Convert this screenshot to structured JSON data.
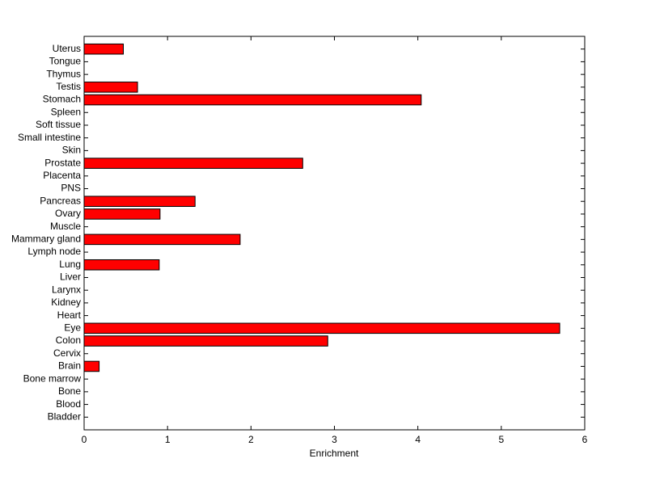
{
  "chart_data": {
    "type": "barh",
    "x_label": "Enrichment",
    "categories": [
      "Bladder",
      "Blood",
      "Bone",
      "Bone marrow",
      "Brain",
      "Cervix",
      "Colon",
      "Eye",
      "Heart",
      "Kidney",
      "Larynx",
      "Liver",
      "Lung",
      "Lymph node",
      "Mammary gland",
      "Muscle",
      "Ovary",
      "Pancreas",
      "PNS",
      "Placenta",
      "Prostate",
      "Skin",
      "Small intestine",
      "Soft tissue",
      "Spleen",
      "Stomach",
      "Testis",
      "Thymus",
      "Tongue",
      "Uterus"
    ],
    "values": [
      0,
      0,
      0,
      0,
      0.18,
      0,
      2.92,
      5.7,
      0,
      0,
      0,
      0,
      0.9,
      0,
      1.87,
      0,
      0.91,
      1.33,
      0,
      0,
      2.62,
      0,
      0,
      0,
      0,
      4.04,
      0.64,
      0,
      0,
      0.47
    ],
    "color": "#ff0000",
    "xlim": [
      0,
      6
    ],
    "xticks": [
      0,
      1,
      2,
      3,
      4,
      5,
      6
    ]
  }
}
